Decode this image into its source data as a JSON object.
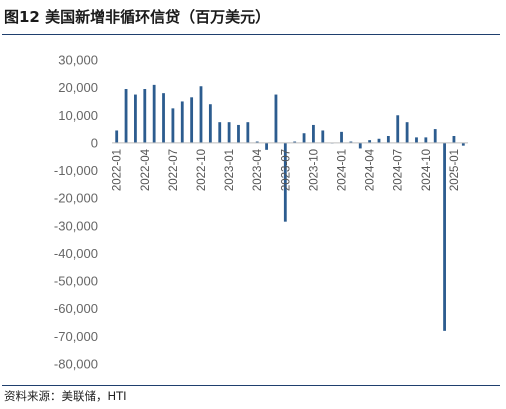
{
  "header": {
    "title": "图12 美国新增非循环信贷（百万美元）"
  },
  "footer": {
    "source": "资料来源：美联储，HTI"
  },
  "chart_data": {
    "type": "bar",
    "title": "图12 美国新增非循环信贷（百万美元）",
    "xlabel": "",
    "ylabel": "",
    "ylim": [
      -80000,
      30000
    ],
    "yticks": [
      30000,
      20000,
      10000,
      0,
      -10000,
      -20000,
      -30000,
      -40000,
      -50000,
      -60000,
      -70000,
      -80000
    ],
    "ytick_labels": [
      "30,000",
      "20,000",
      "10,000",
      "0",
      "-10,000",
      "-20,000",
      "-30,000",
      "-40,000",
      "-50,000",
      "-60,000",
      "-70,000",
      "-80,000"
    ],
    "grid": false,
    "legend": "none",
    "bar_color": "#2c5c8f",
    "categories": [
      "2022-01",
      "2022-02",
      "2022-03",
      "2022-04",
      "2022-05",
      "2022-06",
      "2022-07",
      "2022-08",
      "2022-09",
      "2022-10",
      "2022-11",
      "2022-12",
      "2023-01",
      "2023-02",
      "2023-03",
      "2023-04",
      "2023-05",
      "2023-06",
      "2023-07",
      "2023-08",
      "2023-09",
      "2023-10",
      "2023-11",
      "2023-12",
      "2024-01",
      "2024-02",
      "2024-03",
      "2024-04",
      "2024-05",
      "2024-06",
      "2024-07",
      "2024-08",
      "2024-09",
      "2024-10",
      "2024-11",
      "2024-12",
      "2025-01",
      "2025-02"
    ],
    "tick_labels": [
      "2022-01",
      "2022-04",
      "2022-07",
      "2022-10",
      "2023-01",
      "2023-04",
      "2023-07",
      "2023-10",
      "2024-01",
      "2024-04",
      "2024-07",
      "2024-10",
      "2025-01"
    ],
    "values": [
      4500,
      19500,
      17500,
      19500,
      21000,
      18000,
      12500,
      15000,
      16500,
      20500,
      14000,
      7500,
      7500,
      6500,
      7500,
      500,
      -2500,
      17500,
      -28500,
      500,
      3500,
      6500,
      4500,
      0,
      4000,
      500,
      -2000,
      1000,
      1500,
      2500,
      10000,
      7500,
      2000,
      2000,
      5000,
      -68000,
      2500,
      -1000
    ]
  }
}
